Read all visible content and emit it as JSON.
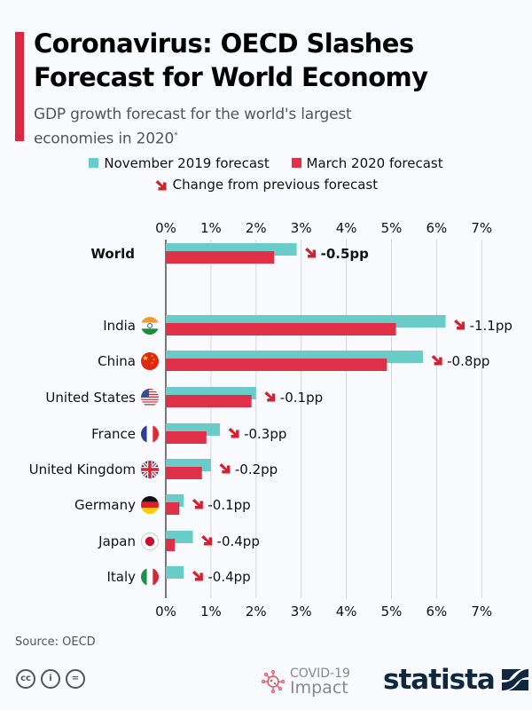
{
  "header": {
    "title_line1": "Coronavirus: OECD Slashes",
    "title_line2": "Forecast for World Economy",
    "subtitle_line1": "GDP growth forecast for the world's largest",
    "subtitle_line2": "economies in 2020",
    "subtitle_note_mark": "*"
  },
  "legend": {
    "series1_label": "November 2019 forecast",
    "series2_label": "March 2020 forecast",
    "change_label": "Change from previous forecast"
  },
  "colors": {
    "nov2019": "#6accc9",
    "mar2020": "#e03048",
    "arrow": "#d4202f",
    "accent": "#d9283f",
    "brand": "#0f2840"
  },
  "chart_data": {
    "type": "bar",
    "orientation": "horizontal",
    "title": "Coronavirus: OECD Slashes Forecast for World Economy",
    "subtitle": "GDP growth forecast for the world's largest economies in 2020*",
    "xlabel": "",
    "ylabel": "",
    "xlim": [
      0,
      7
    ],
    "x_ticks": [
      "0%",
      "1%",
      "2%",
      "3%",
      "4%",
      "5%",
      "6%",
      "7%"
    ],
    "grid": true,
    "legend_position": "top-center",
    "categories": [
      "World",
      "India",
      "China",
      "United States",
      "France",
      "United Kingdom",
      "Germany",
      "Japan",
      "Italy"
    ],
    "series": [
      {
        "name": "November 2019 forecast",
        "values": [
          2.9,
          6.2,
          5.7,
          2.0,
          1.2,
          1.0,
          0.4,
          0.6,
          0.4
        ]
      },
      {
        "name": "March 2020 forecast",
        "values": [
          2.4,
          5.1,
          4.9,
          1.9,
          0.9,
          0.8,
          0.3,
          0.2,
          0.0
        ]
      }
    ],
    "change_labels": [
      "-0.5pp",
      "-1.1pp",
      "-0.8pp",
      "-0.1pp",
      "-0.3pp",
      "-0.2pp",
      "-0.1pp",
      "-0.4pp",
      "-0.4pp"
    ],
    "flags": [
      null,
      "india-flag",
      "china-flag",
      "usa-flag",
      "france-flag",
      "uk-flag",
      "germany-flag",
      "japan-flag",
      "italy-flag"
    ]
  },
  "footer": {
    "source": "Source: OECD",
    "covid_line1": "COVID-19",
    "covid_line2": "Impact",
    "brand": "statista"
  }
}
